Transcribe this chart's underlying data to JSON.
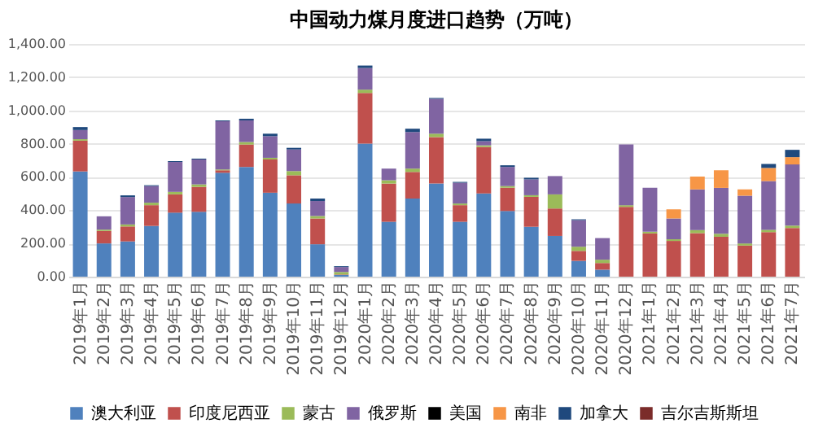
{
  "chart_data": {
    "type": "bar",
    "stacked": true,
    "title": "中国动力煤月度进口趋势（万吨）",
    "categories": [
      "2019年1月",
      "2019年2月",
      "2019年3月",
      "2019年4月",
      "2019年5月",
      "2019年6月",
      "2019年7月",
      "2019年8月",
      "2019年9月",
      "2019年10月",
      "2019年11月",
      "2019年12月",
      "2020年1月",
      "2020年2月",
      "2020年3月",
      "2020年4月",
      "2020年5月",
      "2020年6月",
      "2020年7月",
      "2020年8月",
      "2020年9月",
      "2020年10月",
      "2020年11月",
      "2020年12月",
      "2021年1月",
      "2021年2月",
      "2021年3月",
      "2021年4月",
      "2021年5月",
      "2021年6月",
      "2021年7月"
    ],
    "series": [
      {
        "name": "澳大利亚",
        "color": "#4f81bd",
        "values": [
          633,
          200,
          212,
          305,
          385,
          390,
          625,
          660,
          505,
          440,
          195,
          10,
          800,
          330,
          470,
          560,
          330,
          500,
          395,
          300,
          245,
          95,
          42,
          0,
          0,
          0,
          0,
          0,
          0,
          0,
          0
        ]
      },
      {
        "name": "印度尼西亚",
        "color": "#c0504d",
        "values": [
          185,
          75,
          90,
          125,
          110,
          150,
          15,
          135,
          200,
          170,
          155,
          3,
          305,
          230,
          160,
          280,
          100,
          280,
          140,
          180,
          165,
          60,
          40,
          420,
          260,
          215,
          262,
          240,
          187,
          268,
          293
        ]
      },
      {
        "name": "蒙古",
        "color": "#9bbb59",
        "values": [
          9,
          8,
          12,
          15,
          15,
          15,
          5,
          15,
          10,
          25,
          15,
          15,
          20,
          20,
          20,
          20,
          10,
          10,
          10,
          10,
          85,
          25,
          20,
          10,
          10,
          10,
          18,
          18,
          13,
          14,
          14
        ]
      },
      {
        "name": "俄罗斯",
        "color": "#8064a2",
        "values": [
          55,
          80,
          165,
          100,
          180,
          150,
          290,
          130,
          130,
          130,
          90,
          30,
          130,
          70,
          220,
          210,
          125,
          25,
          115,
          95,
          110,
          160,
          130,
          365,
          265,
          125,
          245,
          276,
          287,
          293,
          368
        ]
      },
      {
        "name": "美国",
        "color": "#000000",
        "values": [
          0,
          0,
          0,
          0,
          0,
          0,
          0,
          0,
          0,
          0,
          0,
          0,
          0,
          0,
          0,
          0,
          0,
          0,
          0,
          0,
          0,
          0,
          0,
          0,
          0,
          0,
          0,
          0,
          0,
          0,
          0
        ]
      },
      {
        "name": "南非",
        "color": "#f79646",
        "values": [
          0,
          0,
          0,
          0,
          0,
          0,
          0,
          0,
          0,
          0,
          0,
          0,
          0,
          0,
          0,
          0,
          0,
          0,
          0,
          0,
          0,
          0,
          0,
          0,
          0,
          55,
          77,
          106,
          38,
          79,
          44
        ]
      },
      {
        "name": "加拿大",
        "color": "#1f497d",
        "values": [
          18,
          0,
          10,
          5,
          5,
          5,
          5,
          10,
          15,
          10,
          15,
          5,
          15,
          0,
          20,
          5,
          5,
          15,
          10,
          10,
          0,
          5,
          0,
          0,
          0,
          0,
          0,
          0,
          0,
          24,
          44
        ]
      },
      {
        "name": "吉尔吉斯斯坦",
        "color": "#7b2c2a",
        "values": [
          0,
          0,
          0,
          0,
          0,
          0,
          0,
          0,
          0,
          0,
          0,
          0,
          0,
          0,
          0,
          0,
          0,
          0,
          0,
          0,
          0,
          0,
          0,
          0,
          0,
          0,
          0,
          0,
          0,
          0,
          0
        ]
      }
    ],
    "ylim": [
      0,
      1400
    ],
    "yticks": [
      {
        "value": 0,
        "label": "0.00"
      },
      {
        "value": 200,
        "label": "200.00"
      },
      {
        "value": 400,
        "label": "400.00"
      },
      {
        "value": 600,
        "label": "600.00"
      },
      {
        "value": 800,
        "label": "800.00"
      },
      {
        "value": 1000,
        "label": "1,000.00"
      },
      {
        "value": 1200,
        "label": "1,200.00"
      },
      {
        "value": 1400,
        "label": "1,400.00"
      }
    ],
    "grid": "y",
    "legend": "bottom"
  }
}
